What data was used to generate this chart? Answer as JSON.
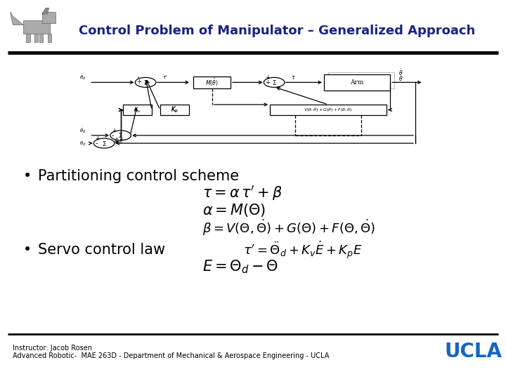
{
  "title": "Control Problem of Manipulator – Generalized Approach",
  "title_color": "#1a237e",
  "bg_color": "#ffffff",
  "bullet1": "Partitioning control scheme",
  "bullet2": "Servo control law",
  "eq1": "$\\tau = \\alpha\\, \\tau^{\\prime} + \\beta$",
  "eq2": "$\\alpha = M(\\Theta)$",
  "eq3": "$\\beta = V(\\Theta,\\dot{\\Theta}) + G(\\Theta) + F(\\Theta,\\dot{\\Theta})$",
  "eq4": "$\\tau^{\\prime} = \\ddot{\\Theta}_d + K_v \\dot{E} + K_p E$",
  "eq5": "$E = \\Theta_d - \\Theta$",
  "footer_left1": "Instructor: Jacob Rosen",
  "footer_left2": "Advanced Robotic-  MAE 263D - Department of Mechanical & Aerospace Engineering - UCLA",
  "footer_right": "UCLA",
  "footer_color": "#1565c0",
  "bullet_fontsize": 15,
  "eq_fontsize": 13,
  "footer_fontsize": 7,
  "ucla_fontsize": 20,
  "title_fontsize": 13
}
